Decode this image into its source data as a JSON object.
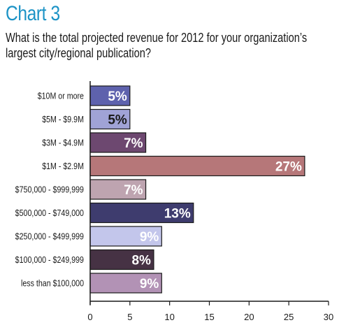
{
  "header": {
    "chart_label": "Chart 3",
    "question_line1": "What is the total projected revenue for 2012 for your organization’s",
    "question_line2": "largest city/regional publication?"
  },
  "chart_data": {
    "type": "bar",
    "orientation": "horizontal",
    "title": "Chart 3",
    "subtitle": "What is the total projected revenue for 2012 for your organization’s largest city/regional publication?",
    "categories": [
      "$10M or more",
      "$5M - $9.9M",
      "$3M - $4.9M",
      "$1M - $2.9M",
      "$750,000 - $999,999",
      "$500,000 - $749,000",
      "$250,000 - $499,999",
      "$100,000 - $249,999",
      "less than $100,000"
    ],
    "values": [
      5,
      5,
      7,
      27,
      7,
      13,
      9,
      8,
      9
    ],
    "value_labels": [
      "5%",
      "5%",
      "7%",
      "27%",
      "7%",
      "13%",
      "9%",
      "8%",
      "9%"
    ],
    "bar_colors": [
      "#5e62ad",
      "#a0a3d6",
      "#6d4870",
      "#b67779",
      "#bea4b0",
      "#3e3c6e",
      "#c3c6eb",
      "#463244",
      "#b292b5"
    ],
    "label_colors": [
      "#ffffff",
      "#1a1a1a",
      "#ffffff",
      "#ffffff",
      "#ffffff",
      "#ffffff",
      "#ffffff",
      "#ffffff",
      "#ffffff"
    ],
    "xlim": [
      0,
      30
    ],
    "xticks": [
      "0",
      "5",
      "10",
      "15",
      "20",
      "25",
      "30"
    ],
    "grid": false,
    "legend": "none",
    "xlabel": "",
    "ylabel": ""
  }
}
